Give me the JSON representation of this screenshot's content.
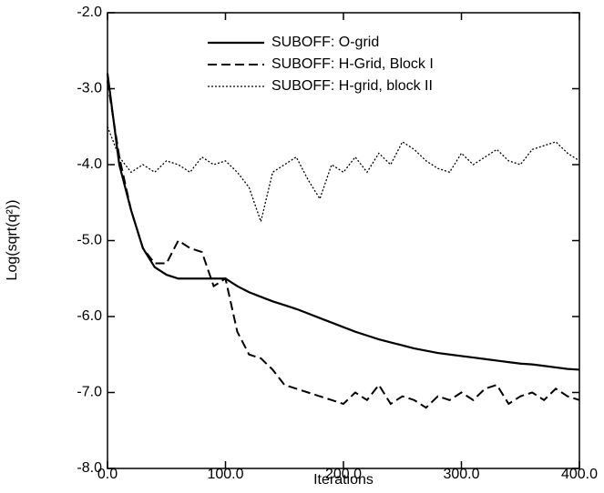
{
  "chart_data": {
    "type": "line",
    "xlabel": "Iterations",
    "ylabel": "Log(sqrt(q²))",
    "x": [
      0,
      10,
      20,
      30,
      40,
      50,
      60,
      70,
      80,
      90,
      100,
      110,
      120,
      130,
      140,
      150,
      160,
      170,
      180,
      190,
      200,
      210,
      220,
      230,
      240,
      250,
      260,
      270,
      280,
      290,
      300,
      310,
      320,
      330,
      340,
      350,
      360,
      370,
      380,
      390,
      400
    ],
    "series": [
      {
        "name": "SUBOFF: O-grid",
        "color": "#000000",
        "dash": "solid",
        "values": [
          -2.8,
          -4.0,
          -4.6,
          -5.1,
          -5.35,
          -5.45,
          -5.5,
          -5.5,
          -5.5,
          -5.5,
          -5.5,
          -5.6,
          -5.68,
          -5.74,
          -5.8,
          -5.85,
          -5.9,
          -5.96,
          -6.02,
          -6.08,
          -6.14,
          -6.2,
          -6.25,
          -6.3,
          -6.34,
          -6.38,
          -6.42,
          -6.45,
          -6.48,
          -6.5,
          -6.52,
          -6.54,
          -6.56,
          -6.58,
          -6.6,
          -6.62,
          -6.63,
          -6.65,
          -6.67,
          -6.69,
          -6.7
        ]
      },
      {
        "name": "SUBOFF: H-Grid, Block I",
        "color": "#000000",
        "dash": "dashed",
        "values": [
          -2.9,
          -3.9,
          -4.6,
          -5.1,
          -5.3,
          -5.3,
          -5.0,
          -5.1,
          -5.15,
          -5.6,
          -5.5,
          -6.2,
          -6.5,
          -6.55,
          -6.7,
          -6.9,
          -6.95,
          -7.0,
          -7.05,
          -7.1,
          -7.15,
          -7.0,
          -7.1,
          -6.9,
          -7.15,
          -7.05,
          -7.1,
          -7.2,
          -7.05,
          -7.1,
          -7.0,
          -7.1,
          -6.95,
          -6.9,
          -7.15,
          -7.05,
          -7.0,
          -7.1,
          -6.95,
          -7.05,
          -7.1
        ]
      },
      {
        "name": "SUBOFF: H-grid, block II",
        "color": "#000000",
        "dash": "dotted",
        "values": [
          -3.5,
          -3.9,
          -4.1,
          -4.0,
          -4.1,
          -3.95,
          -4.0,
          -4.1,
          -3.9,
          -4.0,
          -3.95,
          -4.1,
          -4.3,
          -4.75,
          -4.1,
          -4.0,
          -3.9,
          -4.2,
          -4.45,
          -4.0,
          -4.1,
          -3.9,
          -4.1,
          -3.85,
          -4.0,
          -3.7,
          -3.8,
          -3.95,
          -4.05,
          -4.1,
          -3.85,
          -4.0,
          -3.9,
          -3.8,
          -3.95,
          -4.0,
          -3.8,
          -3.75,
          -3.7,
          -3.85,
          -3.95
        ]
      }
    ],
    "xlim": [
      0,
      400
    ],
    "xticks": [
      {
        "value": 0,
        "label": "0.0"
      },
      {
        "value": 100,
        "label": "100.0"
      },
      {
        "value": 200,
        "label": "200.0"
      },
      {
        "value": 300,
        "label": "300.0"
      },
      {
        "value": 400,
        "label": "400.0"
      }
    ],
    "ylim": [
      -8,
      -2
    ],
    "yticks": [
      {
        "value": -8,
        "label": "-8.0"
      },
      {
        "value": -7,
        "label": "-7.0"
      },
      {
        "value": -6,
        "label": "-6.0"
      },
      {
        "value": -5,
        "label": "-5.0"
      },
      {
        "value": -4,
        "label": "-4.0"
      },
      {
        "value": -3,
        "label": "-3.0"
      },
      {
        "value": -2,
        "label": "-2.0"
      }
    ],
    "grid": false,
    "legend": "top"
  }
}
